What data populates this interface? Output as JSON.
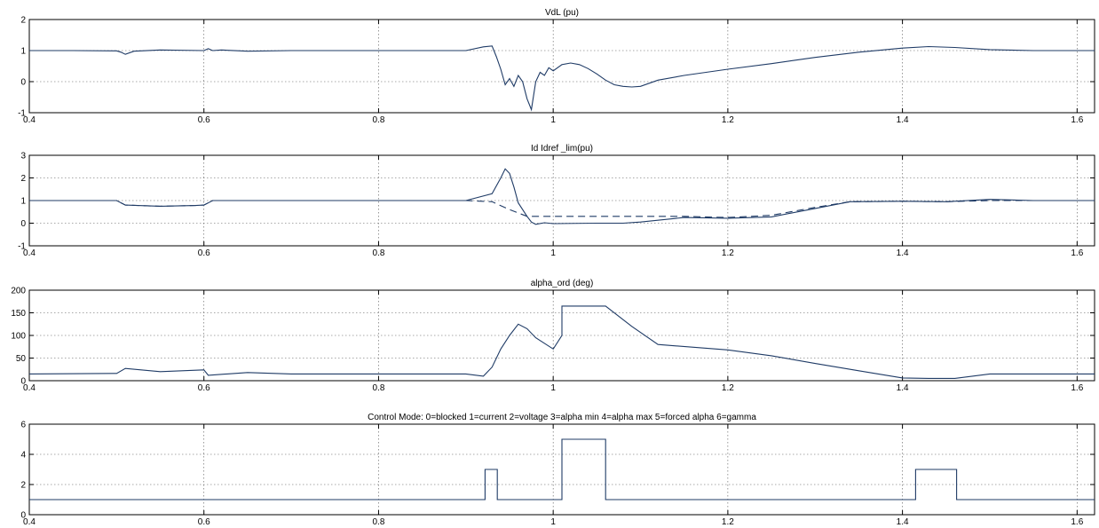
{
  "figure": {
    "background": "#ffffff",
    "line_color": "#1f3b66",
    "grid": "dotted"
  },
  "chart_data": [
    {
      "type": "line",
      "title": "VdL (pu)",
      "xlim": [
        0.4,
        1.62
      ],
      "ylim": [
        -1,
        2
      ],
      "xticks": [
        0.4,
        0.6,
        0.8,
        1,
        1.2,
        1.4,
        1.6
      ],
      "xtick_labels": [
        "0.4",
        "0.6",
        "0.8",
        "1",
        "1.2",
        "1.4",
        "1.6"
      ],
      "yticks": [
        -1,
        0,
        1,
        2
      ],
      "ytick_labels": [
        "-1",
        "0",
        "1",
        "2"
      ],
      "series": [
        {
          "style": "solid",
          "x": [
            0.4,
            0.45,
            0.5,
            0.505,
            0.51,
            0.52,
            0.55,
            0.6,
            0.605,
            0.61,
            0.62,
            0.65,
            0.7,
            0.8,
            0.9,
            0.92,
            0.93,
            0.935,
            0.94,
            0.945,
            0.95,
            0.955,
            0.96,
            0.965,
            0.97,
            0.975,
            0.98,
            0.985,
            0.99,
            0.995,
            1.0,
            1.01,
            1.02,
            1.03,
            1.04,
            1.05,
            1.06,
            1.07,
            1.08,
            1.09,
            1.1,
            1.12,
            1.15,
            1.2,
            1.25,
            1.3,
            1.35,
            1.4,
            1.43,
            1.46,
            1.5,
            1.55,
            1.6,
            1.62
          ],
          "y": [
            1.0,
            1.0,
            0.99,
            0.95,
            0.88,
            0.98,
            1.02,
            1.0,
            1.06,
            1.0,
            1.02,
            0.98,
            1.0,
            1.0,
            1.0,
            1.12,
            1.15,
            0.8,
            0.4,
            -0.1,
            0.1,
            -0.15,
            0.2,
            0.0,
            -0.55,
            -0.9,
            0.0,
            0.3,
            0.2,
            0.45,
            0.35,
            0.55,
            0.6,
            0.55,
            0.42,
            0.25,
            0.05,
            -0.1,
            -0.15,
            -0.17,
            -0.15,
            0.05,
            0.2,
            0.4,
            0.58,
            0.78,
            0.95,
            1.08,
            1.13,
            1.1,
            1.03,
            1.0,
            1.0,
            1.0
          ]
        }
      ]
    },
    {
      "type": "line",
      "title": "Id  Idref _lim(pu)",
      "xlim": [
        0.4,
        1.62
      ],
      "ylim": [
        -1,
        3
      ],
      "xticks": [
        0.4,
        0.6,
        0.8,
        1,
        1.2,
        1.4,
        1.6
      ],
      "xtick_labels": [
        "0.4",
        "0.6",
        "0.8",
        "1",
        "1.2",
        "1.4",
        "1.6"
      ],
      "yticks": [
        -1,
        0,
        1,
        2,
        3
      ],
      "ytick_labels": [
        "-1",
        "0",
        "1",
        "2",
        "3"
      ],
      "series": [
        {
          "style": "solid",
          "x": [
            0.4,
            0.5,
            0.51,
            0.55,
            0.59,
            0.6,
            0.61,
            0.7,
            0.8,
            0.9,
            0.93,
            0.94,
            0.945,
            0.95,
            0.955,
            0.96,
            0.97,
            0.975,
            0.98,
            0.99,
            1.0,
            1.05,
            1.08,
            1.1,
            1.15,
            1.2,
            1.25,
            1.3,
            1.34,
            1.4,
            1.45,
            1.5,
            1.55,
            1.6,
            1.62
          ],
          "y": [
            1.0,
            1.0,
            0.8,
            0.75,
            0.78,
            0.8,
            1.0,
            1.0,
            1.0,
            1.0,
            1.3,
            2.0,
            2.4,
            2.2,
            1.6,
            0.9,
            0.3,
            0.05,
            -0.05,
            0.02,
            -0.02,
            0.0,
            0.0,
            0.05,
            0.25,
            0.22,
            0.28,
            0.65,
            0.95,
            0.97,
            0.95,
            1.05,
            1.0,
            1.0,
            1.0
          ]
        },
        {
          "style": "dashed",
          "x": [
            0.4,
            0.5,
            0.51,
            0.55,
            0.59,
            0.6,
            0.61,
            0.7,
            0.8,
            0.9,
            0.93,
            0.95,
            0.97,
            1.0,
            1.05,
            1.1,
            1.15,
            1.2,
            1.25,
            1.3,
            1.34,
            1.4,
            1.45,
            1.5,
            1.55,
            1.6,
            1.62
          ],
          "y": [
            1.0,
            1.0,
            0.8,
            0.75,
            0.78,
            0.8,
            1.0,
            1.0,
            1.0,
            1.0,
            0.95,
            0.6,
            0.3,
            0.3,
            0.3,
            0.3,
            0.3,
            0.25,
            0.35,
            0.7,
            0.95,
            0.97,
            0.95,
            1.0,
            1.0,
            1.0,
            1.0
          ]
        }
      ]
    },
    {
      "type": "line",
      "title": "alpha_ord (deg)",
      "xlim": [
        0.4,
        1.62
      ],
      "ylim": [
        0,
        200
      ],
      "xticks": [
        0.4,
        0.6,
        0.8,
        1,
        1.2,
        1.4,
        1.6
      ],
      "xtick_labels": [
        "0.4",
        "0.6",
        "0.8",
        "1",
        "1.2",
        "1.4",
        "1.6"
      ],
      "yticks": [
        0,
        50,
        100,
        150,
        200
      ],
      "ytick_labels": [
        "0",
        "50",
        "100",
        "150",
        "200"
      ],
      "series": [
        {
          "style": "solid",
          "x": [
            0.4,
            0.5,
            0.51,
            0.55,
            0.6,
            0.605,
            0.65,
            0.7,
            0.8,
            0.9,
            0.92,
            0.93,
            0.94,
            0.95,
            0.96,
            0.97,
            0.98,
            1.0,
            1.01,
            1.01,
            1.06,
            1.09,
            1.12,
            1.2,
            1.25,
            1.3,
            1.35,
            1.4,
            1.43,
            1.46,
            1.5,
            1.55,
            1.6,
            1.62
          ],
          "y": [
            15,
            16,
            27,
            20,
            24,
            12,
            18,
            15,
            15,
            15,
            10,
            30,
            70,
            100,
            125,
            115,
            95,
            70,
            100,
            165,
            165,
            120,
            80,
            68,
            55,
            38,
            22,
            6,
            5,
            5,
            15,
            15,
            15,
            15
          ]
        }
      ]
    },
    {
      "type": "line",
      "title": "Control Mode:   0=blocked  1=current 2=voltage 3=alpha min  4=alpha max 5=forced alpha 6=gamma",
      "xlim": [
        0.4,
        1.62
      ],
      "ylim": [
        0,
        6
      ],
      "xticks": [
        0.4,
        0.6,
        0.8,
        1,
        1.2,
        1.4,
        1.6
      ],
      "xtick_labels": [
        "0.4",
        "0.6",
        "0.8",
        "1",
        "1.2",
        "1.4",
        "1.6"
      ],
      "yticks": [
        0,
        2,
        4,
        6
      ],
      "ytick_labels": [
        "0",
        "2",
        "4",
        "6"
      ],
      "series": [
        {
          "style": "solid",
          "x": [
            0.4,
            0.922,
            0.922,
            0.936,
            0.936,
            1.01,
            1.01,
            1.06,
            1.06,
            1.415,
            1.415,
            1.462,
            1.462,
            1.62
          ],
          "y": [
            1,
            1,
            3,
            3,
            1,
            1,
            5,
            5,
            1,
            1,
            3,
            3,
            1,
            1
          ]
        }
      ]
    }
  ]
}
